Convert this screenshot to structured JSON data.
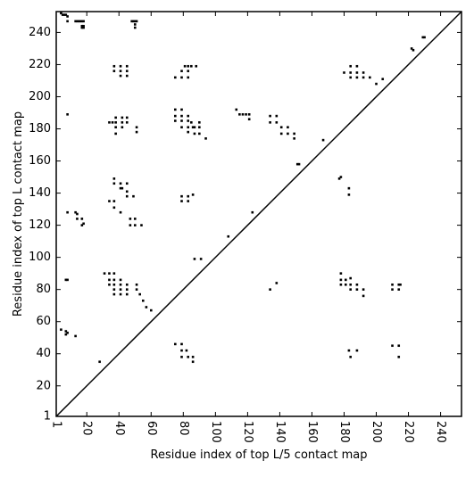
{
  "chart_data": {
    "type": "scatter",
    "xlabel": "Residue index of top L/5 contact map",
    "ylabel": "Residue index of top L contact map",
    "xlim": [
      1,
      253
    ],
    "ylim": [
      1,
      253
    ],
    "xticks": [
      1,
      20,
      40,
      60,
      80,
      100,
      120,
      140,
      160,
      180,
      200,
      220,
      240
    ],
    "yticks": [
      1,
      20,
      40,
      60,
      80,
      100,
      120,
      140,
      160,
      180,
      200,
      220,
      240
    ],
    "color": "#000000",
    "x": [
      4,
      5,
      6,
      7,
      8,
      8,
      13,
      14,
      15,
      16,
      17,
      18,
      17,
      18,
      17,
      18,
      48,
      49,
      50,
      51,
      50,
      50,
      37,
      37,
      41,
      41,
      41,
      45,
      45,
      45,
      75,
      79,
      79,
      83,
      83,
      83,
      85,
      88,
      81,
      8,
      34,
      36,
      38,
      38,
      38,
      38,
      42,
      42,
      42,
      45,
      45,
      51,
      51,
      75,
      75,
      75,
      79,
      79,
      79,
      79,
      83,
      83,
      83,
      83,
      85,
      86,
      87,
      87,
      90,
      90,
      90,
      94,
      113,
      115,
      117,
      119,
      121,
      121,
      134,
      134,
      138,
      138,
      141,
      141,
      145,
      145,
      149,
      149,
      151,
      152,
      167,
      8,
      13,
      14,
      14,
      17,
      18,
      17,
      37,
      37,
      41,
      41,
      42,
      45,
      45,
      45,
      49,
      34,
      37,
      37,
      41,
      47,
      47,
      50,
      50,
      54,
      79,
      79,
      83,
      83,
      86,
      108,
      123,
      87,
      91,
      177,
      178,
      183,
      183,
      180,
      184,
      184,
      184,
      188,
      188,
      188,
      192,
      192,
      196,
      200,
      204,
      222,
      223,
      229,
      230,
      4,
      7,
      7,
      8,
      13,
      8,
      7,
      28,
      31,
      34,
      34,
      34,
      37,
      37,
      37,
      37,
      37,
      41,
      41,
      41,
      41,
      45,
      45,
      45,
      51,
      51,
      53,
      55,
      57,
      60,
      75,
      79,
      79,
      79,
      82,
      83,
      86,
      86,
      134,
      138,
      178,
      178,
      178,
      181,
      181,
      184,
      184,
      184,
      188,
      188,
      192,
      192,
      183,
      184,
      188,
      210,
      210,
      214,
      215,
      214,
      210,
      214,
      214
    ],
    "y": [
      252,
      251,
      251,
      251,
      250,
      247,
      247,
      247,
      247,
      247,
      247,
      247,
      244,
      244,
      243,
      243,
      247,
      247,
      247,
      247,
      245,
      243,
      219,
      216,
      219,
      216,
      213,
      219,
      216,
      213,
      212,
      212,
      216,
      212,
      216,
      219,
      219,
      219,
      219,
      189,
      184,
      184,
      184,
      187,
      181,
      177,
      184,
      187,
      181,
      184,
      187,
      181,
      178,
      192,
      188,
      185,
      192,
      188,
      185,
      181,
      188,
      185,
      181,
      178,
      184,
      181,
      181,
      177,
      184,
      181,
      177,
      174,
      192,
      189,
      189,
      189,
      189,
      186,
      188,
      184,
      188,
      184,
      181,
      177,
      181,
      177,
      177,
      174,
      158,
      158,
      173,
      128,
      128,
      127,
      124,
      124,
      121,
      120,
      149,
      146,
      146,
      143,
      143,
      146,
      141,
      138,
      138,
      135,
      135,
      131,
      128,
      124,
      120,
      124,
      120,
      120,
      138,
      135,
      138,
      135,
      139,
      113,
      128,
      99,
      99,
      149,
      150,
      143,
      139,
      215,
      219,
      215,
      212,
      219,
      215,
      212,
      215,
      212,
      212,
      208,
      211,
      230,
      229,
      237,
      237,
      55,
      54,
      52,
      53,
      51,
      86,
      86,
      35,
      90,
      90,
      86,
      83,
      90,
      86,
      83,
      80,
      77,
      86,
      83,
      80,
      77,
      83,
      80,
      77,
      83,
      80,
      77,
      73,
      69,
      67,
      46,
      46,
      42,
      38,
      42,
      38,
      38,
      35,
      80,
      84,
      90,
      86,
      83,
      86,
      83,
      87,
      83,
      80,
      83,
      80,
      80,
      76,
      42,
      38,
      42,
      83,
      80,
      83,
      83,
      80,
      45,
      45,
      38
    ]
  }
}
